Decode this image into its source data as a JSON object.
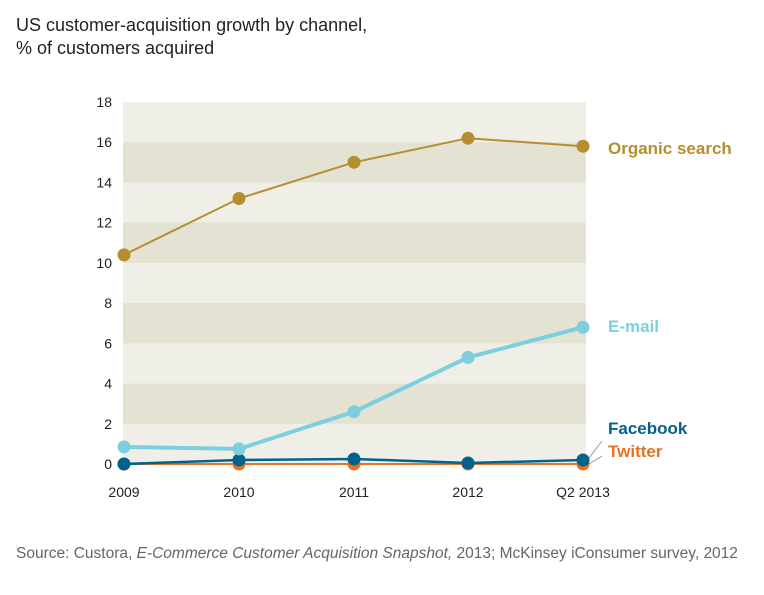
{
  "chart_data": {
    "type": "line",
    "title": "US customer-acquisition growth by channel, % of customers acquired",
    "title_lines": [
      "US customer-acquisition growth by channel,",
      "% of customers acquired"
    ],
    "categories": [
      "2009",
      "2010",
      "2011",
      "2012",
      "Q2 2013"
    ],
    "ylim": [
      0,
      18
    ],
    "yticks": [
      0,
      2,
      4,
      6,
      8,
      10,
      12,
      14,
      16,
      18
    ],
    "grid": "alternating horizontal bands",
    "legend": "direct labels at right end of lines",
    "series": [
      {
        "name": "Organic search",
        "color": "#B58F2F",
        "values": [
          10.4,
          13.2,
          15.0,
          16.2,
          15.8
        ]
      },
      {
        "name": "E-mail",
        "color": "#7DCFE0",
        "values": [
          0.85,
          0.75,
          2.6,
          5.3,
          6.8
        ]
      },
      {
        "name": "Facebook",
        "color": "#03618E",
        "values": [
          0.0,
          0.2,
          0.25,
          0.05,
          0.2
        ]
      },
      {
        "name": "Twitter",
        "color": "#E8731F",
        "values": [
          0.0,
          0.0,
          0.0,
          0.0,
          0.0
        ]
      }
    ]
  },
  "source": {
    "prefix": "Source: Custora, ",
    "italic": "E-Commerce Customer Acquisition Snapshot,",
    "suffix": " 2013; McKinsey iConsumer survey, 2012"
  }
}
